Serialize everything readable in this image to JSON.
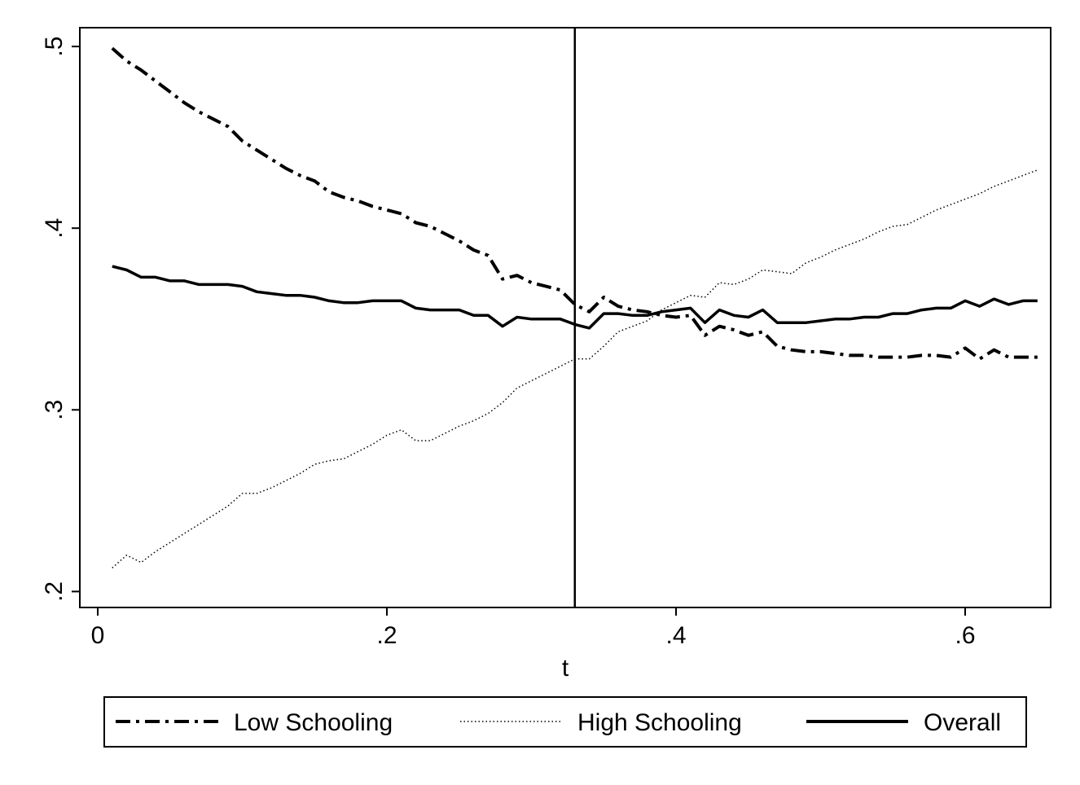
{
  "chart_data": {
    "type": "line",
    "title": "",
    "xlabel": "t",
    "ylabel": "",
    "xlim": [
      0,
      0.66
    ],
    "ylim": [
      0.19,
      0.51
    ],
    "x_ticks": [
      0,
      0.2,
      0.4,
      0.6
    ],
    "x_tick_labels": [
      "0",
      ".2",
      ".4",
      ".6"
    ],
    "y_ticks": [
      0.2,
      0.3,
      0.4,
      0.5
    ],
    "y_tick_labels": [
      ".2",
      ".3",
      ".4",
      ".5"
    ],
    "grid": false,
    "legend_position": "bottom",
    "vline_x": 0.33,
    "x": [
      0.01,
      0.02,
      0.03,
      0.04,
      0.05,
      0.06,
      0.07,
      0.08,
      0.09,
      0.1,
      0.11,
      0.12,
      0.13,
      0.14,
      0.15,
      0.16,
      0.17,
      0.18,
      0.19,
      0.2,
      0.21,
      0.22,
      0.23,
      0.24,
      0.25,
      0.26,
      0.27,
      0.28,
      0.29,
      0.3,
      0.31,
      0.32,
      0.33,
      0.34,
      0.35,
      0.36,
      0.37,
      0.38,
      0.39,
      0.4,
      0.41,
      0.42,
      0.43,
      0.44,
      0.45,
      0.46,
      0.47,
      0.48,
      0.49,
      0.5,
      0.51,
      0.52,
      0.53,
      0.54,
      0.55,
      0.56,
      0.57,
      0.58,
      0.59,
      0.6,
      0.61,
      0.62,
      0.63,
      0.64,
      0.65
    ],
    "series": [
      {
        "name": "Low Schooling",
        "style": "dashdot",
        "values": [
          0.499,
          0.492,
          0.487,
          0.481,
          0.475,
          0.469,
          0.464,
          0.46,
          0.456,
          0.448,
          0.443,
          0.438,
          0.433,
          0.429,
          0.426,
          0.42,
          0.417,
          0.415,
          0.412,
          0.41,
          0.408,
          0.403,
          0.401,
          0.397,
          0.393,
          0.388,
          0.385,
          0.372,
          0.374,
          0.37,
          0.368,
          0.366,
          0.358,
          0.354,
          0.362,
          0.357,
          0.355,
          0.354,
          0.352,
          0.351,
          0.352,
          0.341,
          0.346,
          0.344,
          0.341,
          0.343,
          0.335,
          0.333,
          0.332,
          0.332,
          0.331,
          0.33,
          0.33,
          0.329,
          0.329,
          0.329,
          0.33,
          0.33,
          0.329,
          0.334,
          0.328,
          0.333,
          0.329,
          0.329,
          0.329
        ]
      },
      {
        "name": "High Schooling",
        "style": "dotted",
        "values": [
          0.213,
          0.22,
          0.216,
          0.222,
          0.227,
          0.232,
          0.237,
          0.242,
          0.247,
          0.254,
          0.254,
          0.257,
          0.261,
          0.265,
          0.27,
          0.272,
          0.273,
          0.277,
          0.281,
          0.286,
          0.289,
          0.283,
          0.283,
          0.287,
          0.291,
          0.294,
          0.298,
          0.304,
          0.312,
          0.316,
          0.32,
          0.324,
          0.328,
          0.328,
          0.335,
          0.343,
          0.346,
          0.349,
          0.355,
          0.359,
          0.363,
          0.362,
          0.37,
          0.369,
          0.372,
          0.377,
          0.376,
          0.375,
          0.381,
          0.384,
          0.388,
          0.391,
          0.394,
          0.398,
          0.401,
          0.402,
          0.406,
          0.41,
          0.413,
          0.416,
          0.419,
          0.423,
          0.426,
          0.429,
          0.432
        ]
      },
      {
        "name": "Overall",
        "style": "solid",
        "values": [
          0.379,
          0.377,
          0.373,
          0.373,
          0.371,
          0.371,
          0.369,
          0.369,
          0.369,
          0.368,
          0.365,
          0.364,
          0.363,
          0.363,
          0.362,
          0.36,
          0.359,
          0.359,
          0.36,
          0.36,
          0.36,
          0.356,
          0.355,
          0.355,
          0.355,
          0.352,
          0.352,
          0.346,
          0.351,
          0.35,
          0.35,
          0.35,
          0.347,
          0.345,
          0.353,
          0.353,
          0.352,
          0.352,
          0.354,
          0.355,
          0.356,
          0.348,
          0.355,
          0.352,
          0.351,
          0.355,
          0.348,
          0.348,
          0.348,
          0.349,
          0.35,
          0.35,
          0.351,
          0.351,
          0.353,
          0.353,
          0.355,
          0.356,
          0.356,
          0.36,
          0.357,
          0.361,
          0.358,
          0.36,
          0.36
        ]
      }
    ]
  }
}
